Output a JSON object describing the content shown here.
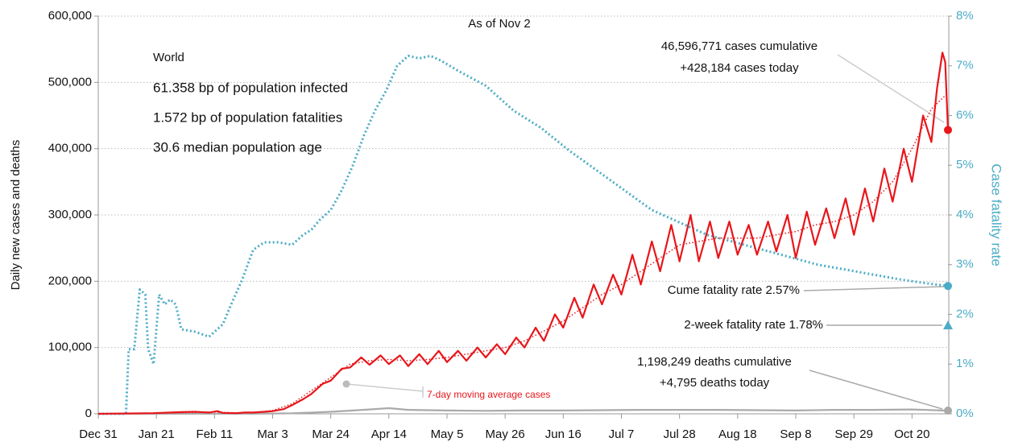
{
  "chart_data": {
    "type": "line",
    "subtitle": "As of Nov 2",
    "info": {
      "title": "World",
      "lines": [
        "61.358 bp of population infected",
        "1.572 bp of population fatalities",
        "30.6 median population age"
      ]
    },
    "y_label": "Daily new cases and deaths",
    "y2_label": "Case fatality rate",
    "xlim": [
      0,
      307
    ],
    "xticks": [
      {
        "value": 0,
        "label": "Dec 31"
      },
      {
        "value": 21,
        "label": "Jan 21"
      },
      {
        "value": 42,
        "label": "Feb 11"
      },
      {
        "value": 63,
        "label": "Mar 3"
      },
      {
        "value": 84,
        "label": "Mar 24"
      },
      {
        "value": 105,
        "label": "Apr 14"
      },
      {
        "value": 126,
        "label": "May 5"
      },
      {
        "value": 147,
        "label": "May 26"
      },
      {
        "value": 168,
        "label": "Jun 16"
      },
      {
        "value": 189,
        "label": "Jul 7"
      },
      {
        "value": 210,
        "label": "Jul 28"
      },
      {
        "value": 231,
        "label": "Aug 18"
      },
      {
        "value": 252,
        "label": "Sep 8"
      },
      {
        "value": 273,
        "label": "Sep 29"
      },
      {
        "value": 294,
        "label": "Oct 20"
      }
    ],
    "ylim": [
      0,
      600000
    ],
    "yticks": [
      0,
      {
        "value": 100000,
        "label": "100,000"
      },
      {
        "value": 200000,
        "label": "200,000"
      },
      {
        "value": 300000,
        "label": "300,000"
      },
      {
        "value": 400000,
        "label": "400,000"
      },
      {
        "value": 500000,
        "label": "500,000"
      },
      {
        "value": 600000,
        "label": "600,000"
      }
    ],
    "y2lim": [
      0,
      8
    ],
    "y2ticks": [
      {
        "value": 0,
        "label": "0%"
      },
      {
        "value": 1,
        "label": "1%"
      },
      {
        "value": 2,
        "label": "2%"
      },
      {
        "value": 3,
        "label": "3%"
      },
      {
        "value": 4,
        "label": "4%"
      },
      {
        "value": 5,
        "label": "5%"
      },
      {
        "value": 6,
        "label": "6%"
      },
      {
        "value": 7,
        "label": "7%"
      },
      {
        "value": 8,
        "label": "8%"
      }
    ],
    "grid": true,
    "series": [
      {
        "color": "#4bacc6",
        "style": "dotted",
        "axis": "y2",
        "end_marker": true,
        "x": [
          0,
          10,
          11,
          13,
          15,
          17,
          18,
          20,
          22,
          24,
          26,
          28,
          30,
          35,
          40,
          45,
          48,
          52,
          56,
          60,
          65,
          70,
          74,
          77,
          80,
          84,
          88,
          92,
          96,
          100,
          104,
          108,
          112,
          116,
          120,
          124,
          130,
          140,
          150,
          160,
          170,
          180,
          190,
          200,
          210,
          220,
          230,
          240,
          250,
          260,
          270,
          280,
          290,
          300,
          307
        ],
        "values": [
          0,
          0,
          1.3,
          1.3,
          2.5,
          2.4,
          1.3,
          1.0,
          2.4,
          2.2,
          2.3,
          2.2,
          1.7,
          1.65,
          1.55,
          1.8,
          2.2,
          2.7,
          3.3,
          3.45,
          3.45,
          3.4,
          3.6,
          3.7,
          3.9,
          4.1,
          4.5,
          5.0,
          5.6,
          6.1,
          6.5,
          7.0,
          7.2,
          7.15,
          7.2,
          7.1,
          6.9,
          6.6,
          6.1,
          5.75,
          5.3,
          4.9,
          4.5,
          4.1,
          3.85,
          3.6,
          3.45,
          3.3,
          3.15,
          3.0,
          2.9,
          2.8,
          2.7,
          2.62,
          2.57
        ]
      },
      {
        "color": "#aaaaaa",
        "style": "solid",
        "end_marker": true,
        "x": [
          0,
          56,
          70,
          84,
          98,
          105,
          112,
          126,
          140,
          154,
          168,
          182,
          196,
          210,
          224,
          238,
          252,
          266,
          280,
          294,
          307
        ],
        "values": [
          0,
          100,
          700,
          3000,
          6500,
          8500,
          6000,
          5000,
          4500,
          5000,
          5000,
          5500,
          6000,
          6000,
          6000,
          5500,
          5000,
          6000,
          6000,
          6500,
          4795
        ]
      },
      {
        "name": "7-day moving average cases",
        "color": "#e8161b",
        "style": "dotted",
        "x": [
          0,
          28,
          42,
          49,
          56,
          63,
          70,
          77,
          84,
          91,
          98,
          105,
          112,
          119,
          126,
          133,
          140,
          147,
          154,
          161,
          168,
          175,
          182,
          189,
          196,
          203,
          210,
          217,
          224,
          231,
          238,
          245,
          252,
          259,
          266,
          273,
          280,
          287,
          294,
          301,
          307
        ],
        "values": [
          0,
          1500,
          2500,
          1500,
          2000,
          5000,
          15000,
          35000,
          55000,
          75000,
          80000,
          82000,
          80000,
          82000,
          85000,
          90000,
          95000,
          100000,
          110000,
          125000,
          140000,
          160000,
          180000,
          195000,
          215000,
          235000,
          255000,
          260000,
          265000,
          265000,
          265000,
          270000,
          275000,
          285000,
          290000,
          300000,
          320000,
          350000,
          400000,
          460000,
          484000
        ]
      },
      {
        "color": "#e8161b",
        "style": "solid",
        "end_marker": true,
        "x": [
          0,
          20,
          30,
          35,
          40,
          43,
          45,
          50,
          53,
          56,
          60,
          63,
          67,
          70,
          74,
          77,
          81,
          84,
          88,
          91,
          95,
          98,
          102,
          105,
          109,
          112,
          116,
          119,
          123,
          126,
          130,
          133,
          137,
          140,
          144,
          147,
          151,
          154,
          158,
          161,
          165,
          168,
          172,
          175,
          179,
          182,
          186,
          189,
          193,
          196,
          200,
          203,
          207,
          210,
          214,
          217,
          221,
          224,
          228,
          231,
          235,
          238,
          242,
          245,
          249,
          252,
          256,
          259,
          263,
          266,
          270,
          273,
          277,
          280,
          284,
          287,
          291,
          294,
          298,
          301,
          303,
          305,
          306,
          307
        ],
        "values": [
          0,
          1000,
          2500,
          3000,
          2000,
          4000,
          1500,
          1000,
          2000,
          2000,
          3000,
          4000,
          7000,
          13000,
          22000,
          30000,
          45000,
          50000,
          68000,
          70000,
          85000,
          74000,
          88000,
          75000,
          88000,
          72000,
          90000,
          75000,
          95000,
          78000,
          95000,
          80000,
          100000,
          85000,
          105000,
          90000,
          115000,
          100000,
          130000,
          110000,
          150000,
          130000,
          175000,
          145000,
          195000,
          165000,
          210000,
          180000,
          240000,
          195000,
          260000,
          215000,
          285000,
          230000,
          300000,
          230000,
          290000,
          235000,
          290000,
          240000,
          285000,
          240000,
          290000,
          245000,
          300000,
          235000,
          305000,
          255000,
          310000,
          265000,
          325000,
          270000,
          340000,
          290000,
          370000,
          320000,
          400000,
          350000,
          450000,
          410000,
          490000,
          545000,
          530000,
          428184
        ]
      }
    ],
    "two_week_fatality_rate": 1.78,
    "annotations": {
      "cases": [
        "46,596,771 cases cumulative",
        "+428,184 cases today"
      ],
      "cume_rate": "Cume fatality rate 2.57%",
      "two_week_rate": "2-week fatality rate 1.78%",
      "deaths": [
        "1,198,249 deaths cumulative",
        "+4,795 deaths today"
      ]
    }
  }
}
